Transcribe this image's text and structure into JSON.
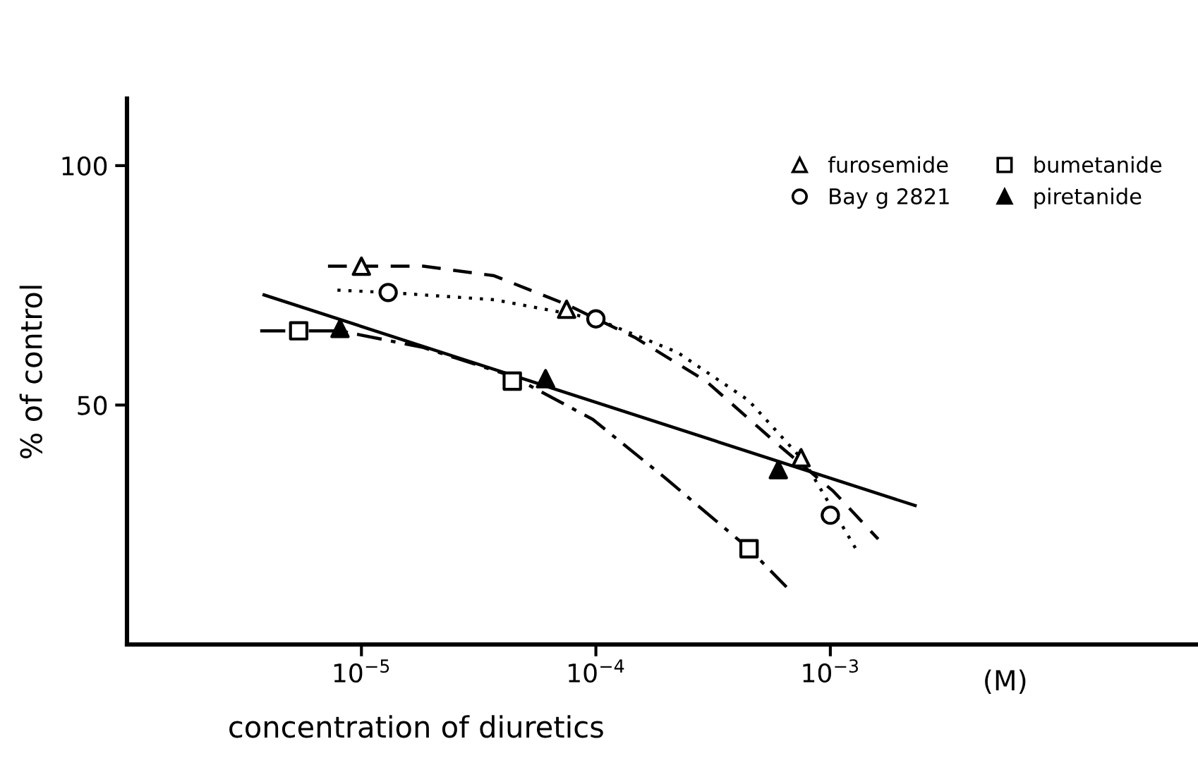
{
  "chart_data": {
    "type": "scatter",
    "xlabel": "concentration of diuretics",
    "ylabel": "% of control",
    "annotations": [
      "(M)"
    ],
    "log": "x",
    "xlim": [
      1e-06,
      0.037
    ],
    "xticks": [
      {
        "value": 1e-05,
        "label": "10$^{−5}$"
      },
      {
        "value": 0.0001,
        "label": "10$^{−4}$"
      },
      {
        "value": 0.001,
        "label": "10$^{−3}$"
      }
    ],
    "ylim": [
      0,
      114
    ],
    "yticks": [
      50,
      100
    ],
    "grid": false,
    "legend": "top right",
    "series": [
      {
        "name": "furosemide",
        "color": "#000000",
        "marker": "triangle",
        "x": [
          1e-05,
          7.5e-05,
          0.00075
        ],
        "values": [
          79,
          70,
          39
        ]
      },
      {
        "name": "Bay g 2821",
        "color": "#000000",
        "marker": "circle",
        "x": [
          1.3e-05,
          0.0001,
          0.001
        ],
        "values": [
          73.5,
          68,
          27
        ]
      },
      {
        "name": "bumetanide",
        "color": "#000000",
        "marker": "square",
        "x": [
          5.4e-06,
          4.4e-05,
          0.00045
        ],
        "values": [
          65.5,
          55,
          20
        ]
      },
      {
        "name": "piretanide",
        "color": "#000000",
        "marker": "triangle",
        "x": [
          8.1e-06,
          6.1e-05,
          0.0006
        ],
        "values": [
          66,
          55.5,
          36.5
        ]
      },
      {
        "type": "line",
        "color": "#000000",
        "marker": "none",
        "line_style": "dashed",
        "x": [
          7.2e-06,
          1.84e-05,
          3.68e-05,
          7.5e-05,
          0.000148,
          0.000295,
          0.00059,
          0.00103,
          0.0016
        ],
        "values": [
          79,
          79,
          77,
          71,
          64,
          55,
          42,
          32,
          22
        ]
      },
      {
        "type": "line",
        "color": "#000000",
        "marker": "none",
        "line_style": "dotted",
        "x": [
          7.9e-06,
          1.3e-05,
          3.68e-05,
          0.0001,
          0.000223,
          0.000447,
          0.00078,
          0.00132
        ],
        "values": [
          74,
          73.5,
          72,
          68,
          61,
          51,
          38,
          19
        ]
      },
      {
        "type": "line",
        "color": "#000000",
        "marker": "none",
        "line_style": "dashdot",
        "x": [
          3.7e-06,
          8.1e-06,
          1.84e-05,
          4.4e-05,
          9.7e-05,
          0.000195,
          0.00045,
          0.00065
        ],
        "values": [
          65.5,
          65.5,
          62,
          56,
          47,
          35,
          20,
          12
        ]
      },
      {
        "type": "line",
        "color": "#000000",
        "marker": "none",
        "line_style": "solid",
        "x": [
          3.84e-06,
          0.0023
        ],
        "values": [
          73,
          29
        ]
      }
    ]
  }
}
